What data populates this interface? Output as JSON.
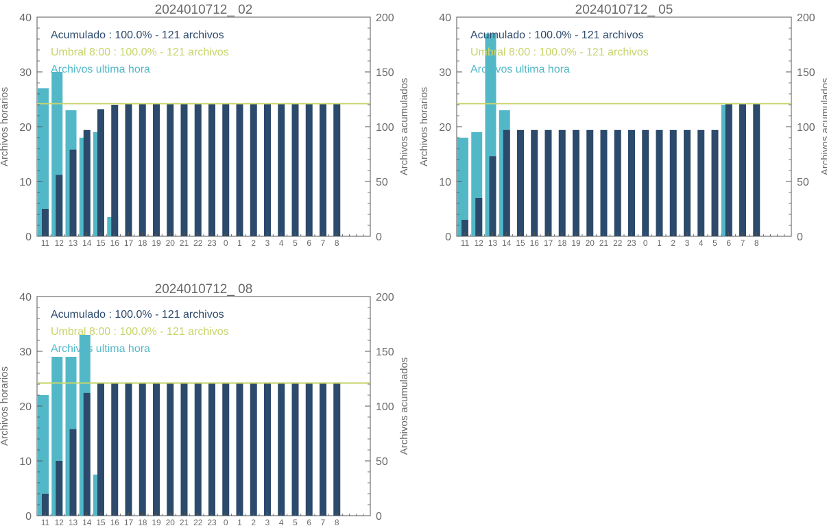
{
  "colors": {
    "hourly": "#52b8c8",
    "cumulative": "#2c4a6b",
    "threshold": "#c8d46a",
    "axis": "#555555",
    "text": "#6a6a6a"
  },
  "chart_data": [
    {
      "type": "bar",
      "title": "2024010712_ 02",
      "ylabel": "Archivos horarios",
      "y2label": "Archivos acumulados",
      "ylim": [
        0,
        40
      ],
      "y2lim": [
        0,
        200
      ],
      "yticks": [
        "0",
        "10",
        "20",
        "30",
        "40"
      ],
      "y2ticks": [
        "0",
        "50",
        "100",
        "150",
        "200"
      ],
      "categories": [
        "11",
        "12",
        "13",
        "14",
        "15",
        "16",
        "17",
        "18",
        "19",
        "20",
        "21",
        "22",
        "23",
        "0",
        "1",
        "2",
        "3",
        "4",
        "5",
        "6",
        "7",
        "8"
      ],
      "legend": {
        "cumulative": "Acumulado : 100.0% - 121 archivos",
        "threshold": "Umbral 8:00 : 100.0% - 121 archivos",
        "hourly": "Archivos ultima hora"
      },
      "threshold": 121,
      "series": [
        {
          "name": "Archivos ultima hora",
          "axis": "left",
          "values": [
            27,
            30,
            23,
            18,
            19,
            3.5,
            0,
            0,
            0,
            0,
            0,
            0,
            0,
            0,
            0,
            0,
            0,
            0,
            0,
            0,
            0,
            0
          ]
        },
        {
          "name": "Acumulado",
          "axis": "right",
          "values": [
            25,
            56,
            79,
            97,
            116,
            120,
            121,
            121,
            121,
            121,
            121,
            121,
            121,
            121,
            121,
            121,
            121,
            121,
            121,
            121,
            121,
            121
          ]
        }
      ]
    },
    {
      "type": "bar",
      "title": "2024010712_ 05",
      "ylabel": "Archivos horarios",
      "y2label": "Archivos acumulados",
      "ylim": [
        0,
        40
      ],
      "y2lim": [
        0,
        200
      ],
      "yticks": [
        "0",
        "10",
        "20",
        "30",
        "40"
      ],
      "y2ticks": [
        "0",
        "50",
        "100",
        "150",
        "200"
      ],
      "categories": [
        "11",
        "12",
        "13",
        "14",
        "15",
        "16",
        "17",
        "18",
        "19",
        "20",
        "21",
        "22",
        "23",
        "0",
        "1",
        "2",
        "3",
        "4",
        "5",
        "6",
        "7",
        "8"
      ],
      "legend": {
        "cumulative": "Acumulado : 100.0% - 121 archivos",
        "threshold": "Umbral 8:00 : 100.0% - 121 archivos",
        "hourly": "Archivos ultima hora"
      },
      "threshold": 121,
      "series": [
        {
          "name": "Archivos ultima hora",
          "axis": "left",
          "values": [
            18,
            19,
            37,
            23,
            0,
            0,
            0,
            0,
            0,
            0,
            0,
            0,
            0,
            0,
            0,
            0,
            0,
            0,
            0,
            24,
            0,
            0
          ]
        },
        {
          "name": "Acumulado",
          "axis": "right",
          "values": [
            15,
            35,
            73,
            97,
            97,
            97,
            97,
            97,
            97,
            97,
            97,
            97,
            97,
            97,
            97,
            97,
            97,
            97,
            97,
            121,
            121,
            121
          ]
        }
      ]
    },
    {
      "type": "bar",
      "title": "2024010712_ 08",
      "ylabel": "Archivos horarios",
      "y2label": "Archivos acumulados",
      "ylim": [
        0,
        40
      ],
      "y2lim": [
        0,
        200
      ],
      "yticks": [
        "0",
        "10",
        "20",
        "30",
        "40"
      ],
      "y2ticks": [
        "0",
        "50",
        "100",
        "150",
        "200"
      ],
      "categories": [
        "11",
        "12",
        "13",
        "14",
        "15",
        "16",
        "17",
        "18",
        "19",
        "20",
        "21",
        "22",
        "23",
        "0",
        "1",
        "2",
        "3",
        "4",
        "5",
        "6",
        "7",
        "8"
      ],
      "legend": {
        "cumulative": "Acumulado : 100.0% - 121 archivos",
        "threshold": "Umbral 8:00 : 100.0% - 121 archivos",
        "hourly": "Archivos ultima hora"
      },
      "threshold": 121,
      "series": [
        {
          "name": "Archivos ultima hora",
          "axis": "left",
          "values": [
            22,
            29,
            29,
            33,
            7.5,
            0,
            0,
            0,
            0,
            0,
            0,
            0,
            0,
            0,
            0,
            0,
            0,
            0,
            0,
            0,
            0,
            0
          ]
        },
        {
          "name": "Acumulado",
          "axis": "right",
          "values": [
            20,
            50,
            79,
            112,
            121,
            121,
            121,
            121,
            121,
            121,
            121,
            121,
            121,
            121,
            121,
            121,
            121,
            121,
            121,
            121,
            121,
            121
          ]
        }
      ]
    }
  ]
}
